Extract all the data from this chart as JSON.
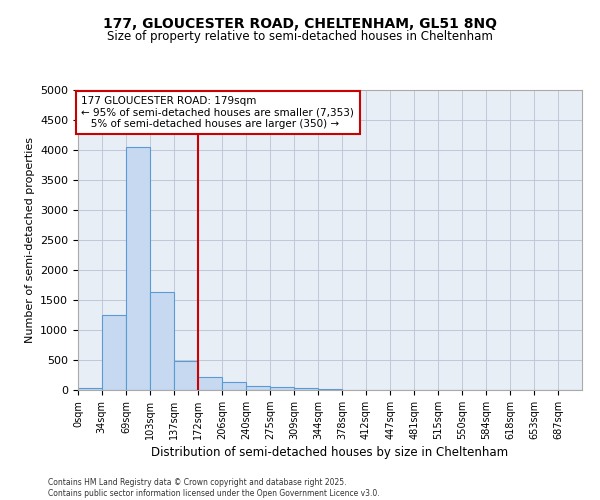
{
  "title1": "177, GLOUCESTER ROAD, CHELTENHAM, GL51 8NQ",
  "title2": "Size of property relative to semi-detached houses in Cheltenham",
  "xlabel": "Distribution of semi-detached houses by size in Cheltenham",
  "ylabel": "Number of semi-detached properties",
  "bin_edges": [
    0,
    34,
    69,
    103,
    137,
    172,
    206,
    240,
    275,
    309,
    344,
    378,
    412,
    447,
    481,
    515,
    550,
    584,
    618,
    653,
    687,
    721
  ],
  "bin_labels": [
    "0sqm",
    "34sqm",
    "69sqm",
    "103sqm",
    "137sqm",
    "172sqm",
    "206sqm",
    "240sqm",
    "275sqm",
    "309sqm",
    "344sqm",
    "378sqm",
    "412sqm",
    "447sqm",
    "481sqm",
    "515sqm",
    "550sqm",
    "584sqm",
    "618sqm",
    "653sqm",
    "687sqm"
  ],
  "counts": [
    30,
    1250,
    4050,
    1630,
    490,
    210,
    140,
    70,
    50,
    30,
    15,
    8,
    4,
    2,
    1,
    1,
    0,
    0,
    0,
    0,
    0
  ],
  "bar_color": "#c6d9f0",
  "bar_edge_color": "#5b9bd5",
  "ylim": [
    0,
    5000
  ],
  "yticks": [
    0,
    500,
    1000,
    1500,
    2000,
    2500,
    3000,
    3500,
    4000,
    4500,
    5000
  ],
  "property_line_x": 172,
  "property_line_color": "#cc0000",
  "annotation_line1": "177 GLOUCESTER ROAD: 179sqm",
  "annotation_line2": "← 95% of semi-detached houses are smaller (7,353)",
  "annotation_line3": "   5% of semi-detached houses are larger (350) →",
  "annotation_box_color": "#ffffff",
  "annotation_border_color": "#cc0000",
  "footer_text": "Contains HM Land Registry data © Crown copyright and database right 2025.\nContains public sector information licensed under the Open Government Licence v3.0.",
  "bg_color": "#e8eef5",
  "grid_color": "#c0c8d8"
}
